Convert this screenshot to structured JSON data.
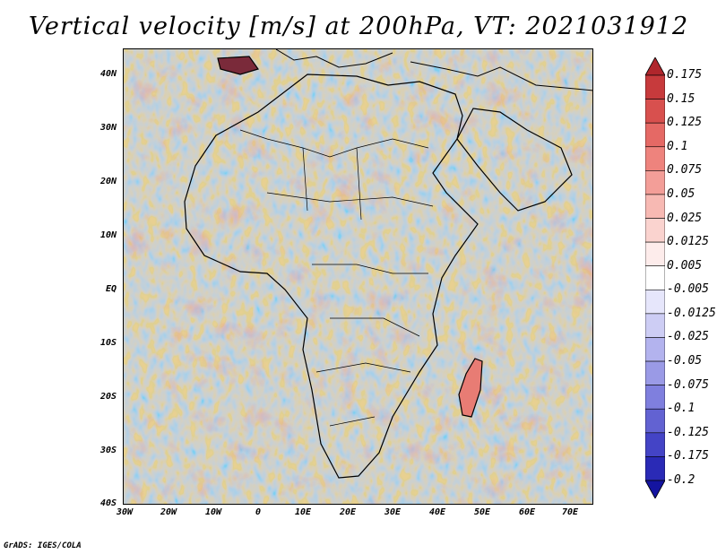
{
  "title": "Vertical velocity [m/s] at 200hPa, VT: 2021031912",
  "credit": "GrADS: IGES/COLA",
  "lat_labels": [
    "40N",
    "30N",
    "20N",
    "10N",
    "EQ",
    "10S",
    "20S",
    "30S",
    "40S"
  ],
  "lon_labels": [
    "30W",
    "20W",
    "10W",
    "0",
    "10E",
    "20E",
    "30E",
    "40E",
    "50E",
    "60E",
    "70E"
  ],
  "colorbar": {
    "levels": [
      "0.175",
      "0.15",
      "0.125",
      "0.1",
      "0.075",
      "0.05",
      "0.025",
      "0.0125",
      "0.005",
      "-0.005",
      "-0.0125",
      "-0.025",
      "-0.05",
      "-0.075",
      "-0.1",
      "-0.125",
      "-0.175",
      "-0.2"
    ],
    "colors": [
      "#b0262c",
      "#c73a3c",
      "#d8504e",
      "#e56965",
      "#ee837d",
      "#f39e98",
      "#f7b9b3",
      "#fad3cf",
      "#fdeceb",
      "#ffffff",
      "#e6e6fb",
      "#cdcdf4",
      "#b3b3ee",
      "#9a9ae6",
      "#7f7fde",
      "#6262d2",
      "#4444c6",
      "#2a2ab6",
      "#1414a0"
    ]
  }
}
